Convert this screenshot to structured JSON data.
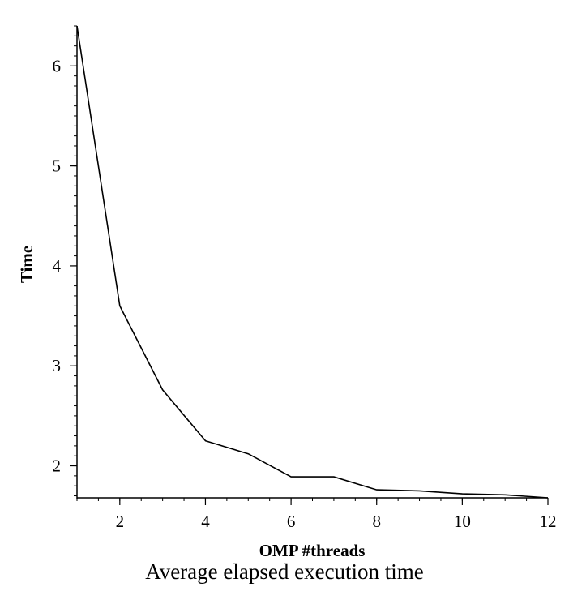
{
  "chart_data": {
    "type": "line",
    "title": "",
    "xlabel": "OMP #threads",
    "ylabel": "Time",
    "xlim": [
      1,
      12
    ],
    "ylim": [
      1.68,
      6.4
    ],
    "x_ticks": [
      2,
      4,
      6,
      8,
      10,
      12
    ],
    "y_ticks": [
      2,
      3,
      4,
      5,
      6
    ],
    "grid": false,
    "series": [
      {
        "x": [
          1,
          2,
          3,
          4,
          5,
          6,
          7,
          8,
          9,
          10,
          11,
          12
        ],
        "values": [
          6.4,
          3.6,
          2.76,
          2.25,
          2.12,
          1.89,
          1.89,
          1.76,
          1.75,
          1.72,
          1.71,
          1.68
        ],
        "color": "#000000"
      }
    ]
  },
  "caption": "Average elapsed execution time"
}
